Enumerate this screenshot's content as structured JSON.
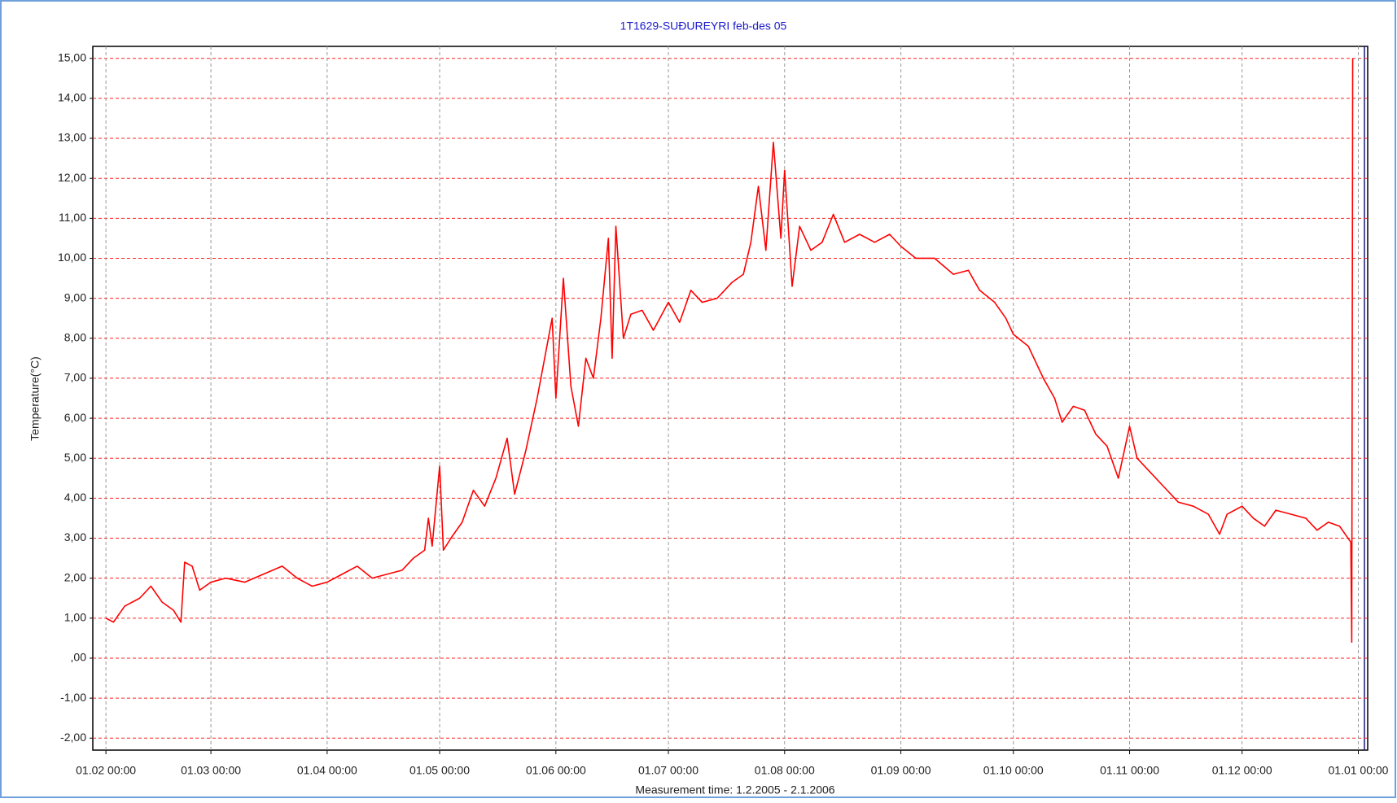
{
  "chart_data": {
    "type": "line",
    "title": "1T1629-SUÐUREYRI feb-des 05",
    "x_label": "Measurement time: 1.2.2005 - 2.1.2006",
    "y_label": "Temperature(°C)",
    "grid": true,
    "xlim": [
      "2005-01-28 12:00",
      "2006-01-03 12:00"
    ],
    "ylim": [
      -2.3,
      15.3
    ],
    "xticks": [
      {
        "value": "2005-02-01 00:00",
        "label": "01.02 00:00"
      },
      {
        "value": "2005-03-01 00:00",
        "label": "01.03 00:00"
      },
      {
        "value": "2005-04-01 00:00",
        "label": "01.04 00:00"
      },
      {
        "value": "2005-05-01 00:00",
        "label": "01.05 00:00"
      },
      {
        "value": "2005-06-01 00:00",
        "label": "01.06 00:00"
      },
      {
        "value": "2005-07-01 00:00",
        "label": "01.07 00:00"
      },
      {
        "value": "2005-08-01 00:00",
        "label": "01.08 00:00"
      },
      {
        "value": "2005-09-01 00:00",
        "label": "01.09 00:00"
      },
      {
        "value": "2005-10-01 00:00",
        "label": "01.10 00:00"
      },
      {
        "value": "2005-11-01 00:00",
        "label": "01.11 00:00"
      },
      {
        "value": "2005-12-01 00:00",
        "label": "01.12 00:00"
      },
      {
        "value": "2006-01-01 00:00",
        "label": "01.01 00:00"
      }
    ],
    "yticks": [
      {
        "value": 15,
        "label": "15,00"
      },
      {
        "value": 14,
        "label": "14,00"
      },
      {
        "value": 13,
        "label": "13,00"
      },
      {
        "value": 12,
        "label": "12,00"
      },
      {
        "value": 11,
        "label": "11,00"
      },
      {
        "value": 10,
        "label": "10,00"
      },
      {
        "value": 9,
        "label": "9,00"
      },
      {
        "value": 8,
        "label": "8,00"
      },
      {
        "value": 7,
        "label": "7,00"
      },
      {
        "value": 6,
        "label": "6,00"
      },
      {
        "value": 5,
        "label": "5,00"
      },
      {
        "value": 4,
        "label": "4,00"
      },
      {
        "value": 3,
        "label": "3,00"
      },
      {
        "value": 2,
        "label": "2,00"
      },
      {
        "value": 1,
        "label": "1,00"
      },
      {
        "value": 0,
        "label": ",00"
      },
      {
        "value": -1,
        "label": "-1,00"
      },
      {
        "value": -2,
        "label": "-2,00"
      }
    ],
    "x": [
      "2005-02-01 00:00",
      "2005-02-03 00:00",
      "2005-02-06 00:00",
      "2005-02-10 00:00",
      "2005-02-13 00:00",
      "2005-02-16 00:00",
      "2005-02-19 00:00",
      "2005-02-21 00:00",
      "2005-02-22 00:00",
      "2005-02-24 00:00",
      "2005-02-26 00:00",
      "2005-03-01 00:00",
      "2005-03-05 00:00",
      "2005-03-10 00:00",
      "2005-03-15 00:00",
      "2005-03-20 00:00",
      "2005-03-24 00:00",
      "2005-03-28 00:00",
      "2005-04-01 00:00",
      "2005-04-05 00:00",
      "2005-04-09 00:00",
      "2005-04-13 00:00",
      "2005-04-17 00:00",
      "2005-04-21 00:00",
      "2005-04-24 00:00",
      "2005-04-27 00:00",
      "2005-04-28 00:00",
      "2005-04-29 00:00",
      "2005-05-01 00:00",
      "2005-05-02 00:00",
      "2005-05-04 00:00",
      "2005-05-07 00:00",
      "2005-05-10 00:00",
      "2005-05-13 00:00",
      "2005-05-16 00:00",
      "2005-05-19 00:00",
      "2005-05-21 00:00",
      "2005-05-24 00:00",
      "2005-05-27 00:00",
      "2005-05-29 00:00",
      "2005-05-31 00:00",
      "2005-06-01 00:00",
      "2005-06-03 00:00",
      "2005-06-05 00:00",
      "2005-06-07 00:00",
      "2005-06-09 00:00",
      "2005-06-11 00:00",
      "2005-06-13 00:00",
      "2005-06-15 00:00",
      "2005-06-16 00:00",
      "2005-06-17 00:00",
      "2005-06-19 00:00",
      "2005-06-21 00:00",
      "2005-06-24 00:00",
      "2005-06-27 00:00",
      "2005-07-01 00:00",
      "2005-07-04 00:00",
      "2005-07-07 00:00",
      "2005-07-10 00:00",
      "2005-07-14 00:00",
      "2005-07-18 00:00",
      "2005-07-21 00:00",
      "2005-07-23 00:00",
      "2005-07-25 00:00",
      "2005-07-27 00:00",
      "2005-07-29 00:00",
      "2005-07-31 00:00",
      "2005-08-01 00:00",
      "2005-08-03 00:00",
      "2005-08-05 00:00",
      "2005-08-08 00:00",
      "2005-08-11 00:00",
      "2005-08-14 00:00",
      "2005-08-17 00:00",
      "2005-08-21 00:00",
      "2005-08-25 00:00",
      "2005-08-29 00:00",
      "2005-09-01 00:00",
      "2005-09-05 00:00",
      "2005-09-10 00:00",
      "2005-09-15 00:00",
      "2005-09-19 00:00",
      "2005-09-22 00:00",
      "2005-09-26 00:00",
      "2005-09-29 00:00",
      "2005-10-01 00:00",
      "2005-10-05 00:00",
      "2005-10-09 00:00",
      "2005-10-12 00:00",
      "2005-10-14 00:00",
      "2005-10-17 00:00",
      "2005-10-20 00:00",
      "2005-10-23 00:00",
      "2005-10-26 00:00",
      "2005-10-29 00:00",
      "2005-11-01 00:00",
      "2005-11-03 00:00",
      "2005-11-06 00:00",
      "2005-11-10 00:00",
      "2005-11-14 00:00",
      "2005-11-18 00:00",
      "2005-11-22 00:00",
      "2005-11-25 00:00",
      "2005-11-27 00:00",
      "2005-12-01 00:00",
      "2005-12-04 00:00",
      "2005-12-07 00:00",
      "2005-12-10 00:00",
      "2005-12-14 00:00",
      "2005-12-18 00:00",
      "2005-12-21 00:00",
      "2005-12-24 00:00",
      "2005-12-27 00:00",
      "2005-12-30 00:00",
      "2005-12-30 06:00",
      "2005-12-30 12:00"
    ],
    "series": [
      {
        "name": "1T1629-SUÐUREYRI",
        "color": "#ff0000",
        "values": [
          1.0,
          0.9,
          1.3,
          1.5,
          1.8,
          1.4,
          1.2,
          0.9,
          2.4,
          2.3,
          1.7,
          1.9,
          2.0,
          1.9,
          2.1,
          2.3,
          2.0,
          1.8,
          1.9,
          2.1,
          2.3,
          2.0,
          2.1,
          2.2,
          2.5,
          2.7,
          3.5,
          2.8,
          4.8,
          2.7,
          3.0,
          3.4,
          4.2,
          3.8,
          4.5,
          5.5,
          4.1,
          5.2,
          6.5,
          7.5,
          8.5,
          6.5,
          9.5,
          6.8,
          5.8,
          7.5,
          7.0,
          8.5,
          10.5,
          7.5,
          10.8,
          8.0,
          8.6,
          8.7,
          8.2,
          8.9,
          8.4,
          9.2,
          8.9,
          9.0,
          9.4,
          9.6,
          10.4,
          11.8,
          10.2,
          12.9,
          10.5,
          12.2,
          9.3,
          10.8,
          10.2,
          10.4,
          11.1,
          10.4,
          10.6,
          10.4,
          10.6,
          10.3,
          10.0,
          10.0,
          9.6,
          9.7,
          9.2,
          8.9,
          8.5,
          8.1,
          7.8,
          7.0,
          6.5,
          5.9,
          6.3,
          6.2,
          5.6,
          5.3,
          4.5,
          5.8,
          5.0,
          4.7,
          4.3,
          3.9,
          3.8,
          3.6,
          3.1,
          3.6,
          3.8,
          3.5,
          3.3,
          3.7,
          3.6,
          3.5,
          3.2,
          3.4,
          3.3,
          2.9,
          0.4,
          15
        ]
      }
    ]
  }
}
